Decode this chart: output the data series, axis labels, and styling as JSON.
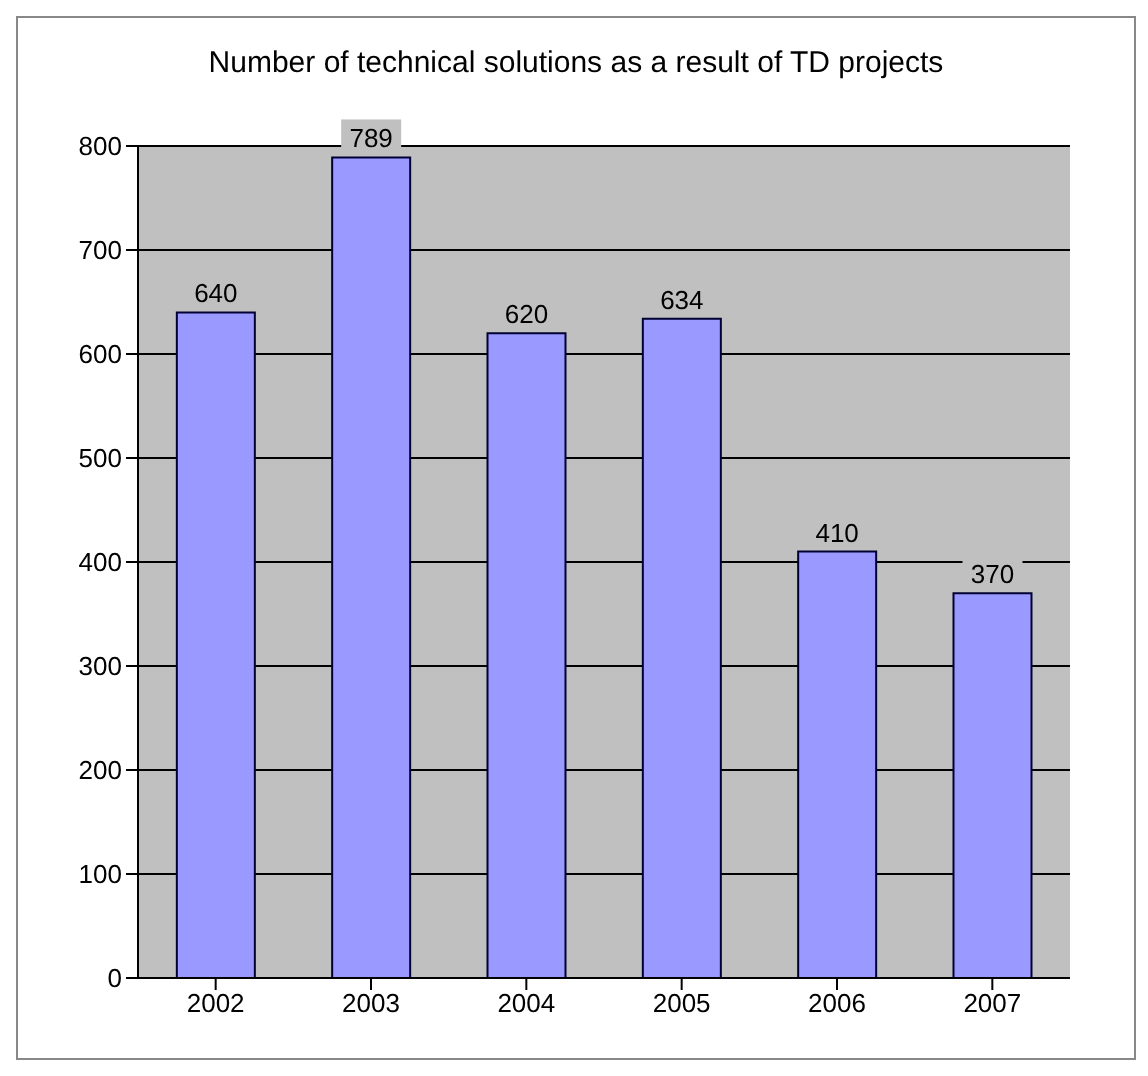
{
  "chart_data": {
    "type": "bar",
    "title": "Number of technical solutions as a result of TD projects",
    "categories": [
      "2002",
      "2003",
      "2004",
      "2005",
      "2006",
      "2007"
    ],
    "values": [
      640,
      789,
      620,
      634,
      410,
      370
    ],
    "color": "#9999ff",
    "ylim": [
      0,
      800
    ],
    "yticks": [
      0,
      100,
      200,
      300,
      400,
      500,
      600,
      700,
      800
    ],
    "grid": "y",
    "data_labels": true
  }
}
